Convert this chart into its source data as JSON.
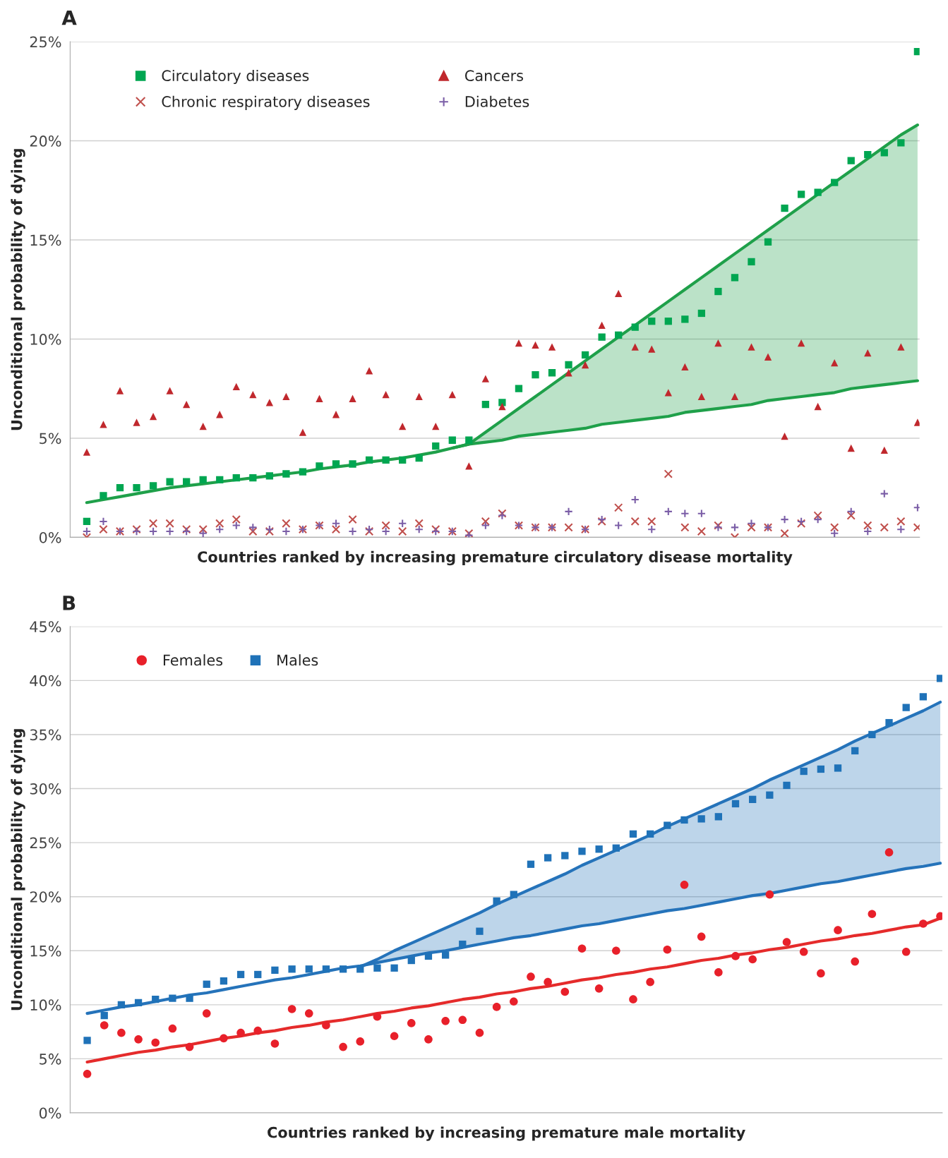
{
  "chart_data": [
    {
      "type": "scatter",
      "annotations": [
        "A"
      ],
      "xlabel": "Countries ranked by increasing premature circulatory disease mortality",
      "ylabel": "Unconditional probability of dying",
      "categories": [
        null,
        null,
        null,
        null,
        null,
        null,
        null,
        null,
        null,
        null,
        null,
        null,
        null,
        null,
        null,
        null,
        null,
        null,
        null,
        null,
        null,
        null,
        null,
        null,
        null,
        null,
        null,
        null,
        null,
        null,
        null,
        null,
        null,
        null,
        null,
        null,
        null,
        null,
        null,
        null,
        null,
        null,
        null,
        null,
        null,
        null,
        null,
        null,
        null,
        null,
        null
      ],
      "ylim": [
        0,
        25
      ],
      "yticks": [
        {
          "value": 0,
          "label": "0%"
        },
        {
          "value": 5,
          "label": "5%"
        },
        {
          "value": 10,
          "label": "10%"
        },
        {
          "value": 15,
          "label": "15%"
        },
        {
          "value": 20,
          "label": "20%"
        },
        {
          "value": 25,
          "label": "25%"
        }
      ],
      "grid": "y",
      "legend": "top left",
      "tick_labels": "y",
      "series": [
        {
          "name": "Circulatory diseases",
          "marker": "square",
          "color": "#00a651",
          "values": [
            0.8,
            2.1,
            2.5,
            2.5,
            2.6,
            2.8,
            2.8,
            2.9,
            2.9,
            3.0,
            3.0,
            3.1,
            3.2,
            3.3,
            3.6,
            3.7,
            3.7,
            3.9,
            3.9,
            3.9,
            4.0,
            4.6,
            4.9,
            4.9,
            6.7,
            6.8,
            7.5,
            8.2,
            8.3,
            8.7,
            9.2,
            10.1,
            10.2,
            10.6,
            10.9,
            10.9,
            11.0,
            11.3,
            12.4,
            13.1,
            13.9,
            14.9,
            16.6,
            17.3,
            17.4,
            17.9,
            19.0,
            19.3,
            19.4,
            19.9,
            24.5
          ]
        },
        {
          "name": "Chronic respiratory diseases",
          "marker": "cross",
          "color": "#c0504d",
          "values": [
            0.0,
            0.4,
            0.3,
            0.4,
            0.7,
            0.7,
            0.4,
            0.4,
            0.7,
            0.9,
            0.3,
            0.3,
            0.7,
            0.4,
            0.6,
            0.4,
            0.9,
            0.3,
            0.6,
            0.3,
            0.7,
            0.4,
            0.3,
            0.2,
            0.8,
            1.2,
            0.6,
            0.5,
            0.5,
            0.5,
            0.4,
            0.8,
            1.5,
            0.8,
            0.8,
            3.2,
            0.5,
            0.3,
            0.6,
            0.0,
            0.5,
            0.5,
            0.2,
            0.7,
            1.1,
            0.5,
            1.1,
            0.6,
            0.5,
            0.8,
            0.5
          ]
        },
        {
          "name": "Cancers",
          "marker": "triangle",
          "color": "#c0282d",
          "values": [
            4.3,
            5.7,
            7.4,
            5.8,
            6.1,
            7.4,
            6.7,
            5.6,
            6.2,
            7.6,
            7.2,
            6.8,
            7.1,
            5.3,
            7.0,
            6.2,
            7.0,
            8.4,
            7.2,
            5.6,
            7.1,
            5.6,
            7.2,
            3.6,
            8.0,
            6.6,
            9.8,
            9.7,
            9.6,
            8.3,
            8.7,
            10.7,
            12.3,
            9.6,
            9.5,
            7.3,
            8.6,
            7.1,
            9.8,
            7.1,
            9.6,
            9.1,
            5.1,
            9.8,
            6.6,
            8.8,
            4.5,
            9.3,
            4.4,
            9.6,
            5.8
          ]
        },
        {
          "name": "Diabetes",
          "marker": "plus",
          "color": "#7b5ea7",
          "values": [
            0.3,
            0.8,
            0.3,
            0.3,
            0.3,
            0.3,
            0.3,
            0.2,
            0.4,
            0.6,
            0.5,
            0.4,
            0.3,
            0.4,
            0.6,
            0.7,
            0.3,
            0.4,
            0.3,
            0.7,
            0.4,
            0.3,
            0.3,
            0.1,
            0.6,
            1.1,
            0.6,
            0.5,
            0.5,
            1.3,
            0.4,
            0.9,
            0.6,
            1.9,
            0.4,
            1.3,
            1.2,
            1.2,
            0.5,
            0.5,
            0.7,
            0.5,
            0.9,
            0.8,
            0.9,
            0.2,
            1.3,
            0.3,
            2.2,
            0.4,
            1.5
          ]
        },
        {
          "type": "line",
          "color": "#1fa04a",
          "values": [
            1.75,
            1.9,
            2.05,
            2.2,
            2.35,
            2.5,
            2.6,
            2.7,
            2.8,
            2.9,
            3.0,
            3.1,
            3.2,
            3.3,
            3.45,
            3.55,
            3.65,
            3.8,
            3.9,
            4.0,
            4.15,
            4.3,
            4.5,
            4.7,
            5.3,
            5.9,
            6.5,
            7.1,
            7.7,
            8.3,
            8.9,
            9.5,
            10.1,
            10.7,
            11.3,
            11.9,
            12.5,
            13.1,
            13.7,
            14.3,
            14.9,
            15.5,
            16.1,
            16.7,
            17.3,
            17.9,
            18.5,
            19.1,
            19.7,
            20.3,
            20.8
          ],
          "lower": [
            null,
            null,
            null,
            null,
            null,
            null,
            null,
            null,
            null,
            null,
            null,
            null,
            null,
            null,
            null,
            null,
            null,
            null,
            null,
            null,
            null,
            null,
            null,
            4.7,
            4.8,
            4.9,
            5.1,
            5.2,
            5.3,
            5.4,
            5.5,
            5.7,
            5.8,
            5.9,
            6.0,
            6.1,
            6.3,
            6.4,
            6.5,
            6.6,
            6.7,
            6.9,
            7.0,
            7.1,
            7.2,
            7.3,
            7.5,
            7.6,
            7.7,
            7.8,
            7.9
          ],
          "upper": [
            null,
            null,
            null,
            null,
            null,
            null,
            null,
            null,
            null,
            null,
            null,
            null,
            null,
            null,
            null,
            null,
            null,
            null,
            null,
            null,
            null,
            null,
            null,
            4.7,
            5.3,
            5.9,
            6.5,
            7.1,
            7.7,
            8.3,
            8.9,
            9.5,
            10.1,
            10.7,
            11.3,
            11.9,
            12.5,
            13.1,
            13.7,
            14.3,
            14.9,
            15.5,
            16.1,
            16.7,
            17.3,
            17.9,
            18.5,
            19.1,
            19.7,
            20.3,
            20.8
          ]
        },
        {
          "type": "line",
          "color": "#1fa04a",
          "values": [
            null,
            null,
            null,
            null,
            null,
            null,
            null,
            null,
            null,
            null,
            null,
            null,
            null,
            null,
            null,
            null,
            null,
            null,
            null,
            null,
            null,
            null,
            4.5,
            4.7,
            4.8,
            4.9,
            5.1,
            5.2,
            5.3,
            5.4,
            5.5,
            5.7,
            5.8,
            5.9,
            6.0,
            6.1,
            6.3,
            6.4,
            6.5,
            6.6,
            6.7,
            6.9,
            7.0,
            7.1,
            7.2,
            7.3,
            7.5,
            7.6,
            7.7,
            7.8,
            7.9
          ]
        }
      ]
    },
    {
      "type": "scatter",
      "annotations": [
        "B"
      ],
      "xlabel": "Countries ranked by increasing premature male mortality",
      "ylabel": "Unconditional probability of dying",
      "categories": [
        null,
        null,
        null,
        null,
        null,
        null,
        null,
        null,
        null,
        null,
        null,
        null,
        null,
        null,
        null,
        null,
        null,
        null,
        null,
        null,
        null,
        null,
        null,
        null,
        null,
        null,
        null,
        null,
        null,
        null,
        null,
        null,
        null,
        null,
        null,
        null,
        null,
        null,
        null,
        null,
        null,
        null,
        null,
        null,
        null,
        null,
        null,
        null,
        null,
        null,
        null
      ],
      "ylim": [
        0,
        45
      ],
      "yticks": [
        {
          "value": 0,
          "label": "0%"
        },
        {
          "value": 5,
          "label": "5%"
        },
        {
          "value": 10,
          "label": "10%"
        },
        {
          "value": 15,
          "label": "15%"
        },
        {
          "value": 20,
          "label": "20%"
        },
        {
          "value": 25,
          "label": "25%"
        },
        {
          "value": 30,
          "label": "30%"
        },
        {
          "value": 35,
          "label": "35%"
        },
        {
          "value": 40,
          "label": "40%"
        },
        {
          "value": 45,
          "label": "45%"
        }
      ],
      "grid": "y",
      "legend": "top left",
      "tick_labels": "y",
      "series": [
        {
          "type": "line",
          "color": "#2573ba",
          "values": [
            null,
            null,
            null,
            null,
            null,
            null,
            null,
            null,
            null,
            null,
            null,
            null,
            null,
            null,
            null,
            null,
            13.5,
            14.2,
            15.0,
            15.7,
            16.4,
            17.1,
            17.8,
            18.5,
            19.3,
            20.0,
            20.7,
            21.4,
            22.1,
            22.9,
            23.6,
            24.3,
            25.0,
            25.7,
            26.5,
            27.2,
            27.9,
            28.6,
            29.3,
            30.0,
            30.8,
            31.5,
            32.2,
            32.9,
            33.6,
            34.4,
            35.1,
            35.8,
            36.5,
            37.2,
            38.0
          ],
          "lower": [
            null,
            null,
            null,
            null,
            null,
            null,
            null,
            null,
            null,
            null,
            null,
            null,
            null,
            null,
            null,
            null,
            13.6,
            13.9,
            14.2,
            14.5,
            14.8,
            15.0,
            15.3,
            15.6,
            15.9,
            16.2,
            16.4,
            16.7,
            17.0,
            17.3,
            17.5,
            17.8,
            18.1,
            18.4,
            18.7,
            18.9,
            19.2,
            19.5,
            19.8,
            20.1,
            20.3,
            20.6,
            20.9,
            21.2,
            21.4,
            21.7,
            22.0,
            22.3,
            22.6,
            22.8,
            23.1
          ],
          "upper": [
            null,
            null,
            null,
            null,
            null,
            null,
            null,
            null,
            null,
            null,
            null,
            null,
            null,
            null,
            null,
            null,
            13.5,
            14.2,
            15.0,
            15.7,
            16.4,
            17.1,
            17.8,
            18.5,
            19.3,
            20.0,
            20.7,
            21.4,
            22.1,
            22.9,
            23.6,
            24.3,
            25.0,
            25.7,
            26.5,
            27.2,
            27.9,
            28.6,
            29.3,
            30.0,
            30.8,
            31.5,
            32.2,
            32.9,
            33.6,
            34.4,
            35.1,
            35.8,
            36.5,
            37.2,
            38.0
          ]
        },
        {
          "type": "line",
          "color": "#2573ba",
          "values": [
            9.2,
            9.5,
            9.8,
            10.0,
            10.3,
            10.6,
            10.9,
            11.1,
            11.4,
            11.7,
            12.0,
            12.3,
            12.5,
            12.8,
            13.1,
            13.4,
            13.6,
            13.9,
            14.2,
            14.5,
            14.8,
            15.0,
            15.3,
            15.6,
            15.9,
            16.2,
            16.4,
            16.7,
            17.0,
            17.3,
            17.5,
            17.8,
            18.1,
            18.4,
            18.7,
            18.9,
            19.2,
            19.5,
            19.8,
            20.1,
            20.3,
            20.6,
            20.9,
            21.2,
            21.4,
            21.7,
            22.0,
            22.3,
            22.6,
            22.8,
            23.1
          ]
        },
        {
          "type": "line",
          "color": "#e52b2b",
          "values": [
            4.7,
            5.0,
            5.3,
            5.6,
            5.8,
            6.1,
            6.3,
            6.6,
            6.9,
            7.1,
            7.4,
            7.6,
            7.9,
            8.1,
            8.4,
            8.6,
            8.9,
            9.2,
            9.4,
            9.7,
            9.9,
            10.2,
            10.5,
            10.7,
            11.0,
            11.2,
            11.5,
            11.7,
            12.0,
            12.3,
            12.5,
            12.8,
            13.0,
            13.3,
            13.5,
            13.8,
            14.1,
            14.3,
            14.6,
            14.8,
            15.1,
            15.3,
            15.6,
            15.9,
            16.1,
            16.4,
            16.6,
            16.9,
            17.2,
            17.4,
            18.0
          ]
        },
        {
          "name": "Females",
          "marker": "circle",
          "color": "#e8202a",
          "values": [
            3.6,
            8.1,
            7.4,
            6.8,
            6.5,
            7.8,
            6.1,
            9.2,
            6.9,
            7.4,
            7.6,
            6.4,
            9.6,
            9.2,
            8.1,
            6.1,
            6.6,
            8.9,
            7.1,
            8.3,
            6.8,
            8.5,
            8.6,
            7.4,
            9.8,
            10.3,
            12.6,
            12.1,
            11.2,
            15.2,
            11.5,
            15.0,
            10.5,
            12.1,
            15.1,
            21.1,
            16.3,
            13.0,
            14.5,
            14.2,
            20.2,
            15.8,
            14.9,
            12.9,
            16.9,
            14.0,
            18.4,
            24.1,
            14.9,
            17.5,
            18.2
          ]
        },
        {
          "name": "Males",
          "marker": "square",
          "color": "#1f72b8",
          "values": [
            6.7,
            9.0,
            10.0,
            10.2,
            10.5,
            10.6,
            10.6,
            11.9,
            12.2,
            12.8,
            12.8,
            13.2,
            13.3,
            13.3,
            13.3,
            13.3,
            13.3,
            13.4,
            13.4,
            14.1,
            14.5,
            14.6,
            15.6,
            16.8,
            19.6,
            20.2,
            23.0,
            23.6,
            23.8,
            24.2,
            24.4,
            24.5,
            25.8,
            25.8,
            26.6,
            27.1,
            27.2,
            27.4,
            28.6,
            29.0,
            29.4,
            30.3,
            31.6,
            31.8,
            31.9,
            33.5,
            35.0,
            36.1,
            37.5,
            38.5,
            40.2
          ]
        }
      ]
    }
  ]
}
